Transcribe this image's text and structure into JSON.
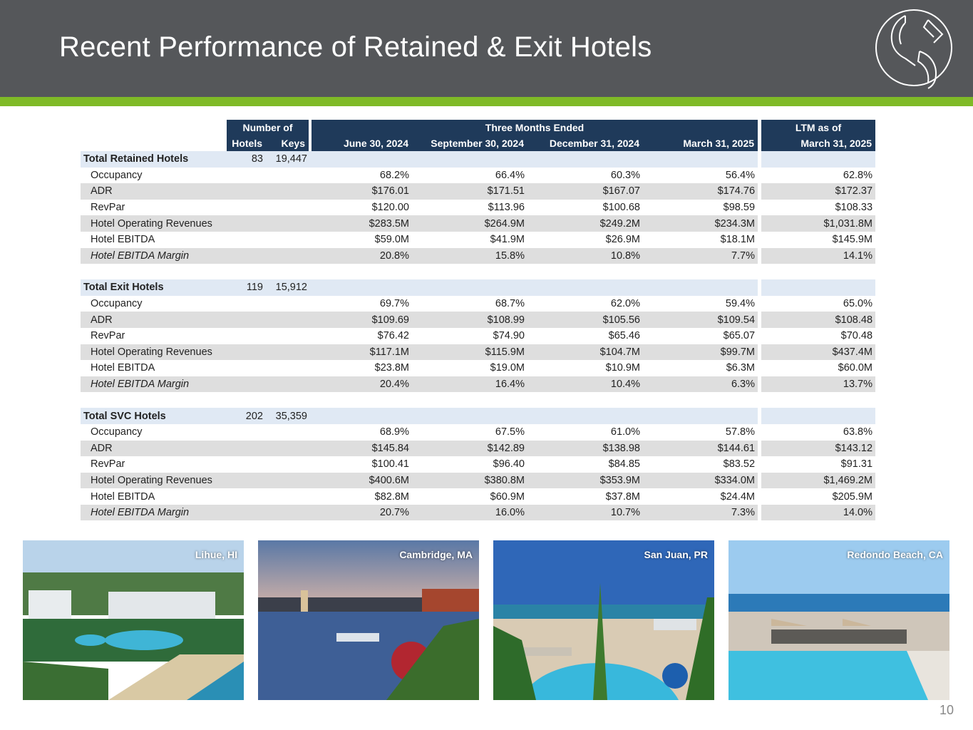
{
  "title": "Recent Performance of Retained & Exit Hotels",
  "page_number": "10",
  "table": {
    "group_headers": {
      "number_of": "Number of",
      "three_months": "Three Months Ended",
      "ltm": "LTM as of"
    },
    "columns": {
      "hotels": "Hotels",
      "keys": "Keys",
      "q1": "June 30, 2024",
      "q2": "September 30, 2024",
      "q3": "December 31, 2024",
      "q4": "March 31, 2025",
      "ltm": "March 31, 2025"
    },
    "sections": [
      {
        "name": "Total Retained Hotels",
        "hotels": "83",
        "keys": "19,447",
        "rows": [
          {
            "label": "Occupancy",
            "values": [
              "68.2%",
              "66.4%",
              "60.3%",
              "56.4%",
              "62.8%"
            ]
          },
          {
            "label": "ADR",
            "values": [
              "$176.01",
              "$171.51",
              "$167.07",
              "$174.76",
              "$172.37"
            ]
          },
          {
            "label": "RevPar",
            "values": [
              "$120.00",
              "$113.96",
              "$100.68",
              "$98.59",
              "$108.33"
            ]
          },
          {
            "label": "Hotel Operating Revenues",
            "values": [
              "$283.5M",
              "$264.9M",
              "$249.2M",
              "$234.3M",
              "$1,031.8M"
            ]
          },
          {
            "label": "Hotel EBITDA",
            "values": [
              "$59.0M",
              "$41.9M",
              "$26.9M",
              "$18.1M",
              "$145.9M"
            ]
          },
          {
            "label": "Hotel EBITDA Margin",
            "values": [
              "20.8%",
              "15.8%",
              "10.8%",
              "7.7%",
              "14.1%"
            ]
          }
        ]
      },
      {
        "name": "Total Exit Hotels",
        "hotels": "119",
        "keys": "15,912",
        "rows": [
          {
            "label": "Occupancy",
            "values": [
              "69.7%",
              "68.7%",
              "62.0%",
              "59.4%",
              "65.0%"
            ]
          },
          {
            "label": "ADR",
            "values": [
              "$109.69",
              "$108.99",
              "$105.56",
              "$109.54",
              "$108.48"
            ]
          },
          {
            "label": "RevPar",
            "values": [
              "$76.42",
              "$74.90",
              "$65.46",
              "$65.07",
              "$70.48"
            ]
          },
          {
            "label": "Hotel Operating Revenues",
            "values": [
              "$117.1M",
              "$115.9M",
              "$104.7M",
              "$99.7M",
              "$437.4M"
            ]
          },
          {
            "label": "Hotel EBITDA",
            "values": [
              "$23.8M",
              "$19.0M",
              "$10.9M",
              "$6.3M",
              "$60.0M"
            ]
          },
          {
            "label": "Hotel EBITDA Margin",
            "values": [
              "20.4%",
              "16.4%",
              "10.4%",
              "6.3%",
              "13.7%"
            ]
          }
        ]
      },
      {
        "name": "Total SVC Hotels",
        "hotels": "202",
        "keys": "35,359",
        "rows": [
          {
            "label": "Occupancy",
            "values": [
              "68.9%",
              "67.5%",
              "61.0%",
              "57.8%",
              "63.8%"
            ]
          },
          {
            "label": "ADR",
            "values": [
              "$145.84",
              "$142.89",
              "$138.98",
              "$144.61",
              "$143.12"
            ]
          },
          {
            "label": "RevPar",
            "values": [
              "$100.41",
              "$96.40",
              "$84.85",
              "$83.52",
              "$91.31"
            ]
          },
          {
            "label": "Hotel Operating Revenues",
            "values": [
              "$400.6M",
              "$380.8M",
              "$353.9M",
              "$334.0M",
              "$1,469.2M"
            ]
          },
          {
            "label": "Hotel EBITDA",
            "values": [
              "$82.8M",
              "$60.9M",
              "$37.8M",
              "$24.4M",
              "$205.9M"
            ]
          },
          {
            "label": "Hotel EBITDA Margin",
            "values": [
              "20.7%",
              "16.0%",
              "10.7%",
              "7.3%",
              "14.0%"
            ]
          }
        ]
      }
    ]
  },
  "photos": [
    {
      "label": "Lihue, HI",
      "scene": "beach-resort-icon"
    },
    {
      "label": "Cambridge, MA",
      "scene": "river-city-icon"
    },
    {
      "label": "San Juan, PR",
      "scene": "pool-palms-icon"
    },
    {
      "label": "Redondo Beach, CA",
      "scene": "rooftop-pool-icon"
    }
  ],
  "colors": {
    "header_bg": "#55575a",
    "accent_green": "#7fba27",
    "table_header": "#1f3a5a",
    "section_row": "#e0e9f4",
    "shade_row": "#dedede"
  }
}
